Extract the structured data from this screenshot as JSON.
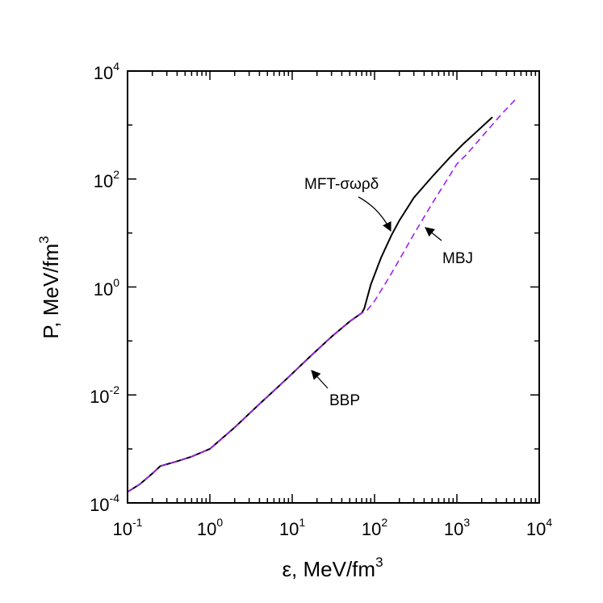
{
  "chart_data": {
    "type": "line",
    "title": "",
    "xlabel": {
      "base": "ε, MeV/fm",
      "sup": "3"
    },
    "ylabel": {
      "base": "P,  MeV/fm",
      "sup": "3"
    },
    "xscale": "log",
    "yscale": "log",
    "xlim": [
      0.1,
      10000
    ],
    "ylim": [
      0.0001,
      10000
    ],
    "x_ticks": [
      {
        "value": 0.1,
        "base": "10",
        "exp": "-1"
      },
      {
        "value": 1,
        "base": "10",
        "exp": "0"
      },
      {
        "value": 10,
        "base": "10",
        "exp": "1"
      },
      {
        "value": 100,
        "base": "10",
        "exp": "2"
      },
      {
        "value": 1000,
        "base": "10",
        "exp": "3"
      },
      {
        "value": 10000,
        "base": "10",
        "exp": "4"
      }
    ],
    "y_ticks": [
      {
        "value": 0.0001,
        "base": "10",
        "exp": "-4"
      },
      {
        "value": 0.01,
        "base": "10",
        "exp": "-2"
      },
      {
        "value": 1,
        "base": "10",
        "exp": "0"
      },
      {
        "value": 100,
        "base": "10",
        "exp": "2"
      },
      {
        "value": 10000,
        "base": "10",
        "exp": "4"
      }
    ],
    "series": [
      {
        "name": "MFT-σωρδ",
        "color": "#000000",
        "dash": "solid",
        "x": [
          0.1,
          0.14,
          0.2,
          0.25,
          0.4,
          0.6,
          1.0,
          2,
          4,
          8,
          15,
          30,
          50,
          70,
          75,
          90,
          120,
          160,
          200,
          300,
          500,
          800,
          1200,
          1800,
          2700
        ],
        "y": [
          0.00016,
          0.00022,
          0.00035,
          0.00048,
          0.00059,
          0.00072,
          0.001,
          0.0025,
          0.0068,
          0.018,
          0.045,
          0.12,
          0.23,
          0.33,
          0.4,
          1.1,
          3.5,
          9,
          17,
          45,
          110,
          240,
          450,
          790,
          1400
        ]
      },
      {
        "name": "MBJ",
        "color": "#a020f0",
        "dash": "dashed",
        "x": [
          0.1,
          0.14,
          0.2,
          0.25,
          0.4,
          0.6,
          1.0,
          2,
          4,
          8,
          15,
          30,
          50,
          70,
          80,
          100,
          150,
          200,
          300,
          500,
          800,
          1000,
          1300,
          2000,
          3500,
          5500
        ],
        "y": [
          0.00016,
          0.00022,
          0.00035,
          0.00048,
          0.00059,
          0.00072,
          0.001,
          0.0025,
          0.0068,
          0.018,
          0.045,
          0.12,
          0.23,
          0.33,
          0.36,
          0.55,
          1.5,
          3.2,
          9.5,
          35,
          110,
          190,
          280,
          600,
          1600,
          3300
        ]
      }
    ],
    "annotations": [
      {
        "text": "MFT-σωρδ",
        "arrow_to": [
          160,
          10
        ]
      },
      {
        "text": "MBJ",
        "arrow_to": [
          300,
          9
        ]
      },
      {
        "text": "BBP",
        "arrow_to": [
          18,
          0.035
        ]
      }
    ]
  }
}
